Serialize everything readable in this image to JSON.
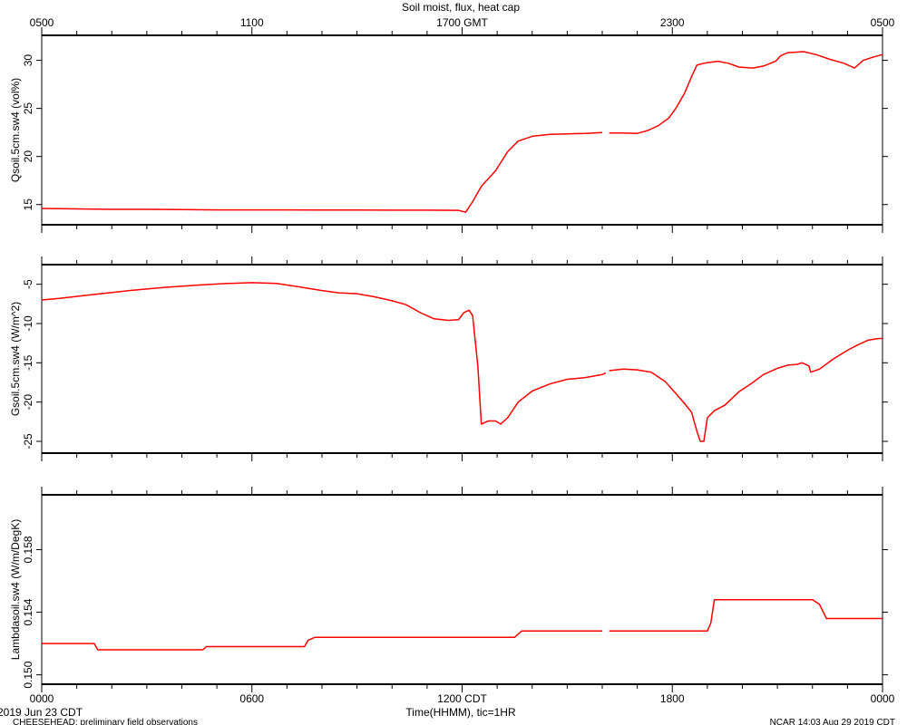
{
  "title": "Soil moist, flux, heat cap",
  "top_axis_ticks": [
    "0500",
    "1100",
    "1700 GMT",
    "2300",
    "0500"
  ],
  "bottom_axis_ticks": [
    "0000",
    "0600",
    "1200 CDT",
    "1800",
    "0000"
  ],
  "xlabel": "Time(HHMM), tic=1HR",
  "date_label": "2019 Jun 23 CDT",
  "footer_left": "CHEESEHEAD: preliminary field observations",
  "footer_right": "NCAR 14:03 Aug 29 2019 CDT",
  "colors": {
    "series": "#ff0000",
    "axes": "#000000"
  },
  "chart_data": [
    {
      "type": "line",
      "ylabel": "Qsoil.5cm.sw4 (vol%)",
      "xlim": [
        0,
        24
      ],
      "ylim": [
        12.9,
        32.6
      ],
      "yticks": [
        15,
        20,
        25,
        30
      ],
      "ytick_labels": [
        "15",
        "20",
        "25",
        "30"
      ],
      "series": [
        {
          "values": [
            [
              0,
              14.6
            ],
            [
              1,
              14.55
            ],
            [
              2,
              14.5
            ],
            [
              3,
              14.5
            ],
            [
              4,
              14.48
            ],
            [
              5,
              14.45
            ],
            [
              6,
              14.45
            ],
            [
              7,
              14.45
            ],
            [
              8,
              14.43
            ],
            [
              9,
              14.43
            ],
            [
              10,
              14.42
            ],
            [
              11,
              14.42
            ],
            [
              11.9,
              14.4
            ],
            [
              12.1,
              14.2
            ],
            [
              12.3,
              15.3
            ],
            [
              12.55,
              16.9
            ],
            [
              12.95,
              18.5
            ],
            [
              13.3,
              20.5
            ],
            [
              13.6,
              21.6
            ],
            [
              14.0,
              22.1
            ],
            [
              14.5,
              22.3
            ],
            [
              15.0,
              22.35
            ],
            [
              15.5,
              22.4
            ],
            [
              16.0,
              22.5
            ]
          ]
        },
        {
          "values": [
            [
              16.2,
              22.45
            ],
            [
              16.6,
              22.45
            ],
            [
              17.0,
              22.4
            ],
            [
              17.3,
              22.7
            ],
            [
              17.6,
              23.2
            ],
            [
              17.9,
              24.0
            ],
            [
              18.1,
              25.0
            ],
            [
              18.35,
              26.6
            ],
            [
              18.55,
              28.3
            ],
            [
              18.7,
              29.5
            ],
            [
              18.9,
              29.7
            ],
            [
              19.3,
              29.9
            ],
            [
              19.6,
              29.7
            ],
            [
              19.9,
              29.3
            ],
            [
              20.3,
              29.2
            ],
            [
              20.6,
              29.4
            ],
            [
              20.95,
              29.9
            ],
            [
              21.1,
              30.5
            ],
            [
              21.3,
              30.8
            ],
            [
              21.75,
              30.9
            ],
            [
              22.1,
              30.6
            ],
            [
              22.5,
              30.1
            ],
            [
              22.9,
              29.7
            ],
            [
              23.2,
              29.2
            ],
            [
              23.45,
              30.0
            ],
            [
              23.7,
              30.3
            ],
            [
              24.0,
              30.6
            ]
          ]
        }
      ]
    },
    {
      "type": "line",
      "ylabel": "Gsoil.5cm.sw4 (W/m^2)",
      "xlim": [
        0,
        24
      ],
      "ylim": [
        -26.5,
        -2.5
      ],
      "yticks": [
        -25,
        -20,
        -15,
        -10,
        -5
      ],
      "ytick_labels": [
        "-25",
        "-20",
        "-15",
        "-10",
        "-5"
      ],
      "series": [
        {
          "values": [
            [
              0,
              -7.0
            ],
            [
              0.5,
              -6.8
            ],
            [
              1.5,
              -6.3
            ],
            [
              2.5,
              -5.8
            ],
            [
              3.5,
              -5.4
            ],
            [
              4.5,
              -5.1
            ],
            [
              5.3,
              -4.9
            ],
            [
              6.0,
              -4.8
            ],
            [
              6.7,
              -4.9
            ],
            [
              7.3,
              -5.3
            ],
            [
              8.0,
              -5.8
            ],
            [
              8.5,
              -6.1
            ],
            [
              9.0,
              -6.2
            ],
            [
              9.5,
              -6.6
            ],
            [
              10.0,
              -7.1
            ],
            [
              10.4,
              -7.6
            ],
            [
              10.8,
              -8.6
            ],
            [
              11.2,
              -9.4
            ],
            [
              11.6,
              -9.6
            ],
            [
              11.9,
              -9.5
            ],
            [
              12.05,
              -8.6
            ],
            [
              12.2,
              -8.3
            ],
            [
              12.3,
              -9.0
            ],
            [
              12.45,
              -15.5
            ],
            [
              12.55,
              -22.8
            ],
            [
              12.75,
              -22.4
            ],
            [
              12.95,
              -22.4
            ],
            [
              13.1,
              -22.8
            ],
            [
              13.3,
              -22.0
            ],
            [
              13.6,
              -20.0
            ],
            [
              14.0,
              -18.6
            ],
            [
              14.5,
              -17.7
            ],
            [
              15.0,
              -17.1
            ],
            [
              15.5,
              -16.9
            ],
            [
              16.0,
              -16.5
            ],
            [
              16.1,
              -16.3
            ]
          ]
        },
        {
          "values": [
            [
              16.2,
              -16.0
            ],
            [
              16.6,
              -15.8
            ],
            [
              17.0,
              -15.9
            ],
            [
              17.4,
              -16.2
            ],
            [
              17.8,
              -17.4
            ],
            [
              18.1,
              -18.9
            ],
            [
              18.35,
              -20.2
            ],
            [
              18.55,
              -21.3
            ],
            [
              18.7,
              -23.7
            ],
            [
              18.8,
              -25.0
            ],
            [
              18.9,
              -25.0
            ],
            [
              19.0,
              -22.0
            ],
            [
              19.2,
              -21.1
            ],
            [
              19.5,
              -20.4
            ],
            [
              19.9,
              -18.7
            ],
            [
              20.3,
              -17.5
            ],
            [
              20.6,
              -16.5
            ],
            [
              21.0,
              -15.7
            ],
            [
              21.3,
              -15.3
            ],
            [
              21.55,
              -15.2
            ],
            [
              21.7,
              -15.0
            ],
            [
              21.9,
              -15.4
            ],
            [
              21.95,
              -16.2
            ],
            [
              22.2,
              -15.8
            ],
            [
              22.6,
              -14.5
            ],
            [
              23.0,
              -13.4
            ],
            [
              23.3,
              -12.7
            ],
            [
              23.6,
              -12.1
            ],
            [
              23.9,
              -11.9
            ],
            [
              24.0,
              -11.9
            ]
          ]
        }
      ]
    },
    {
      "type": "line",
      "ylabel": "Lambdasoil.sw4 (W/m/DegK)",
      "xlim": [
        0,
        24
      ],
      "ylim": [
        0.1494,
        0.1615
      ],
      "yticks": [
        0.15,
        0.154,
        0.158
      ],
      "ytick_labels": [
        "0.150",
        "0.154",
        "0.158"
      ],
      "series": [
        {
          "values": [
            [
              0,
              0.152
            ],
            [
              1.5,
              0.152
            ],
            [
              1.6,
              0.1516
            ],
            [
              1.65,
              0.1516
            ],
            [
              3.0,
              0.1516
            ],
            [
              4.5,
              0.1516
            ],
            [
              4.6,
              0.1516
            ],
            [
              4.7,
              0.1518
            ],
            [
              5.0,
              0.1518
            ],
            [
              7.5,
              0.1518
            ],
            [
              7.6,
              0.1522
            ],
            [
              7.8,
              0.1524
            ],
            [
              9.0,
              0.1524
            ],
            [
              10.0,
              0.1524
            ],
            [
              11.0,
              0.1524
            ],
            [
              12.5,
              0.1524
            ],
            [
              13.5,
              0.1524
            ],
            [
              13.6,
              0.1526
            ],
            [
              13.7,
              0.1528
            ],
            [
              16.0,
              0.1528
            ]
          ]
        },
        {
          "values": [
            [
              16.2,
              0.1528
            ],
            [
              17.5,
              0.1528
            ],
            [
              19.0,
              0.1528
            ],
            [
              19.1,
              0.1533
            ],
            [
              19.2,
              0.1548
            ],
            [
              19.3,
              0.1548
            ],
            [
              20.5,
              0.1548
            ],
            [
              22.0,
              0.1548
            ],
            [
              22.2,
              0.1545
            ],
            [
              22.4,
              0.1536
            ],
            [
              24.0,
              0.1536
            ]
          ]
        }
      ]
    }
  ]
}
